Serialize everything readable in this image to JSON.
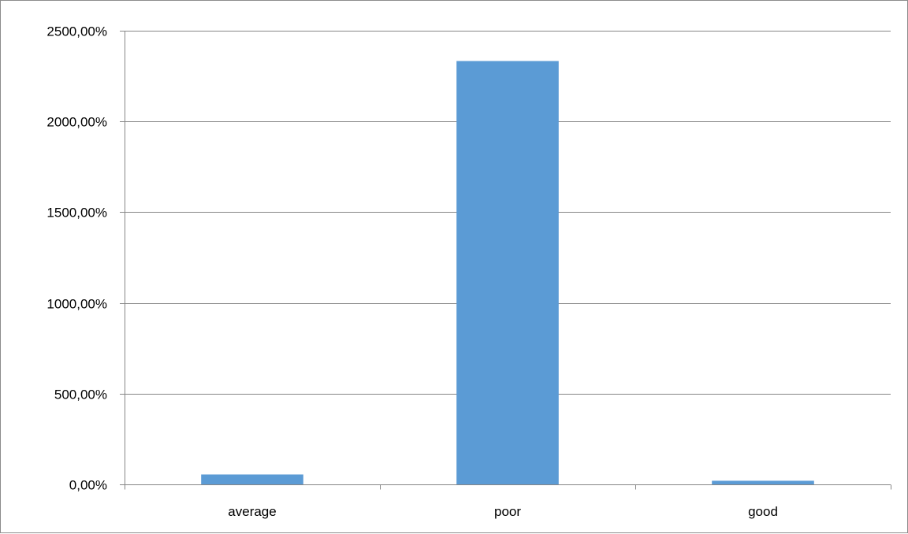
{
  "chart_data": {
    "type": "bar",
    "title": "",
    "xlabel": "",
    "ylabel": "",
    "categories": [
      "average",
      "poor",
      "good"
    ],
    "values": [
      54.5,
      2333.0,
      20.0
    ],
    "unit": "%",
    "ylim": [
      0,
      2500
    ],
    "yticks": [
      0,
      500,
      1000,
      1500,
      2000,
      2500
    ],
    "ytick_labels": [
      "0,00%",
      "500,00%",
      "1000,00%",
      "1500,00%",
      "2000,00%",
      "2500,00%"
    ],
    "grid": true,
    "legend": "none",
    "colors": {
      "bar": "#5b9bd5",
      "grid": "#868686",
      "axis": "#868686",
      "text": "#000000"
    }
  }
}
